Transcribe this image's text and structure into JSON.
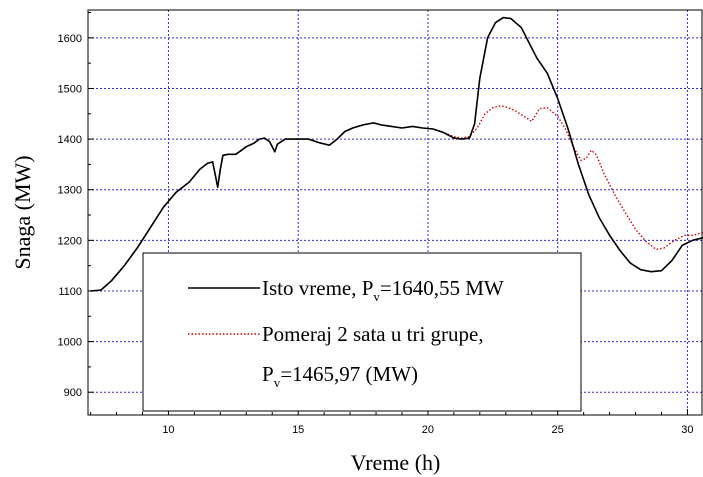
{
  "chart_data": {
    "type": "line",
    "title": "",
    "xlabel": "Vreme (h)",
    "ylabel": "Snaga (MW)",
    "xlim": [
      6.9,
      30.6
    ],
    "ylim": [
      855,
      1655
    ],
    "xticks": [
      10,
      15,
      20,
      25,
      30
    ],
    "yticks": [
      900,
      1000,
      1100,
      1200,
      1300,
      1400,
      1500,
      1600
    ],
    "grid": true,
    "legend_placement": "lower-center",
    "series": [
      {
        "name": "Isto vreme, P_v=1640,55 MW",
        "legend_main": "Isto vreme, P",
        "legend_sub": "v",
        "legend_tail": "=1640,55 MW",
        "color": "#000000",
        "style": "solid",
        "points": [
          [
            7.0,
            1100
          ],
          [
            7.4,
            1102
          ],
          [
            7.8,
            1120
          ],
          [
            8.3,
            1150
          ],
          [
            8.8,
            1185
          ],
          [
            9.3,
            1225
          ],
          [
            9.8,
            1265
          ],
          [
            10.3,
            1295
          ],
          [
            10.8,
            1315
          ],
          [
            11.2,
            1340
          ],
          [
            11.5,
            1352
          ],
          [
            11.7,
            1355
          ],
          [
            11.8,
            1330
          ],
          [
            11.9,
            1305
          ],
          [
            12.0,
            1340
          ],
          [
            12.1,
            1368
          ],
          [
            12.3,
            1370
          ],
          [
            12.6,
            1370
          ],
          [
            13.0,
            1385
          ],
          [
            13.3,
            1392
          ],
          [
            13.5,
            1400
          ],
          [
            13.7,
            1402
          ],
          [
            13.9,
            1395
          ],
          [
            14.1,
            1375
          ],
          [
            14.2,
            1390
          ],
          [
            14.5,
            1400
          ],
          [
            15.0,
            1400
          ],
          [
            15.4,
            1400
          ],
          [
            15.8,
            1393
          ],
          [
            16.2,
            1388
          ],
          [
            16.5,
            1400
          ],
          [
            16.8,
            1415
          ],
          [
            17.1,
            1422
          ],
          [
            17.5,
            1428
          ],
          [
            17.9,
            1432
          ],
          [
            18.2,
            1428
          ],
          [
            18.6,
            1425
          ],
          [
            19.0,
            1422
          ],
          [
            19.4,
            1425
          ],
          [
            19.8,
            1422
          ],
          [
            20.2,
            1420
          ],
          [
            20.6,
            1413
          ],
          [
            21.0,
            1402
          ],
          [
            21.3,
            1400
          ],
          [
            21.6,
            1402
          ],
          [
            21.8,
            1430
          ],
          [
            22.0,
            1520
          ],
          [
            22.3,
            1600
          ],
          [
            22.6,
            1630
          ],
          [
            22.9,
            1640
          ],
          [
            23.2,
            1638
          ],
          [
            23.6,
            1620
          ],
          [
            23.9,
            1590
          ],
          [
            24.2,
            1560
          ],
          [
            24.6,
            1530
          ],
          [
            25.0,
            1480
          ],
          [
            25.4,
            1420
          ],
          [
            25.8,
            1350
          ],
          [
            26.2,
            1290
          ],
          [
            26.6,
            1245
          ],
          [
            27.0,
            1210
          ],
          [
            27.4,
            1180
          ],
          [
            27.8,
            1155
          ],
          [
            28.2,
            1142
          ],
          [
            28.6,
            1138
          ],
          [
            29.0,
            1140
          ],
          [
            29.4,
            1160
          ],
          [
            29.8,
            1190
          ],
          [
            30.2,
            1200
          ],
          [
            30.6,
            1205
          ]
        ]
      },
      {
        "name": "Pomeraj 2 sata u tri grupe, P_v=1465,97 (MW)",
        "legend_main": "Pomeraj 2 sata u tri grupe,",
        "legend_line2_main": "P",
        "legend_sub": "v",
        "legend_tail": "=1465,97 (MW)",
        "color": "#d40000",
        "style": "dotted",
        "points": [
          [
            7.0,
            1100
          ],
          [
            7.4,
            1102
          ],
          [
            7.8,
            1120
          ],
          [
            8.3,
            1150
          ],
          [
            8.8,
            1185
          ],
          [
            9.3,
            1225
          ],
          [
            9.8,
            1265
          ],
          [
            10.3,
            1295
          ],
          [
            10.8,
            1315
          ],
          [
            11.2,
            1340
          ],
          [
            11.5,
            1352
          ],
          [
            11.7,
            1355
          ],
          [
            11.8,
            1330
          ],
          [
            11.9,
            1305
          ],
          [
            12.0,
            1340
          ],
          [
            12.1,
            1368
          ],
          [
            12.3,
            1370
          ],
          [
            12.6,
            1370
          ],
          [
            13.0,
            1385
          ],
          [
            13.3,
            1392
          ],
          [
            13.5,
            1400
          ],
          [
            13.7,
            1402
          ],
          [
            13.9,
            1395
          ],
          [
            14.1,
            1375
          ],
          [
            14.2,
            1390
          ],
          [
            14.5,
            1400
          ],
          [
            15.0,
            1400
          ],
          [
            15.4,
            1400
          ],
          [
            15.8,
            1393
          ],
          [
            16.2,
            1388
          ],
          [
            16.5,
            1400
          ],
          [
            16.8,
            1415
          ],
          [
            17.1,
            1422
          ],
          [
            17.5,
            1428
          ],
          [
            17.9,
            1432
          ],
          [
            18.2,
            1428
          ],
          [
            18.6,
            1425
          ],
          [
            19.0,
            1422
          ],
          [
            19.4,
            1425
          ],
          [
            19.8,
            1422
          ],
          [
            20.2,
            1420
          ],
          [
            20.6,
            1413
          ],
          [
            21.0,
            1405
          ],
          [
            21.3,
            1402
          ],
          [
            21.6,
            1405
          ],
          [
            21.9,
            1422
          ],
          [
            22.2,
            1450
          ],
          [
            22.5,
            1462
          ],
          [
            22.8,
            1466
          ],
          [
            23.1,
            1462
          ],
          [
            23.4,
            1455
          ],
          [
            23.7,
            1445
          ],
          [
            24.0,
            1435
          ],
          [
            24.3,
            1460
          ],
          [
            24.6,
            1462
          ],
          [
            25.0,
            1445
          ],
          [
            25.3,
            1420
          ],
          [
            25.6,
            1385
          ],
          [
            25.9,
            1358
          ],
          [
            26.1,
            1362
          ],
          [
            26.3,
            1378
          ],
          [
            26.5,
            1368
          ],
          [
            26.8,
            1330
          ],
          [
            27.2,
            1290
          ],
          [
            27.6,
            1255
          ],
          [
            28.0,
            1222
          ],
          [
            28.4,
            1198
          ],
          [
            28.8,
            1182
          ],
          [
            29.1,
            1185
          ],
          [
            29.5,
            1200
          ],
          [
            29.9,
            1210
          ],
          [
            30.2,
            1210
          ],
          [
            30.6,
            1215
          ]
        ]
      }
    ]
  }
}
